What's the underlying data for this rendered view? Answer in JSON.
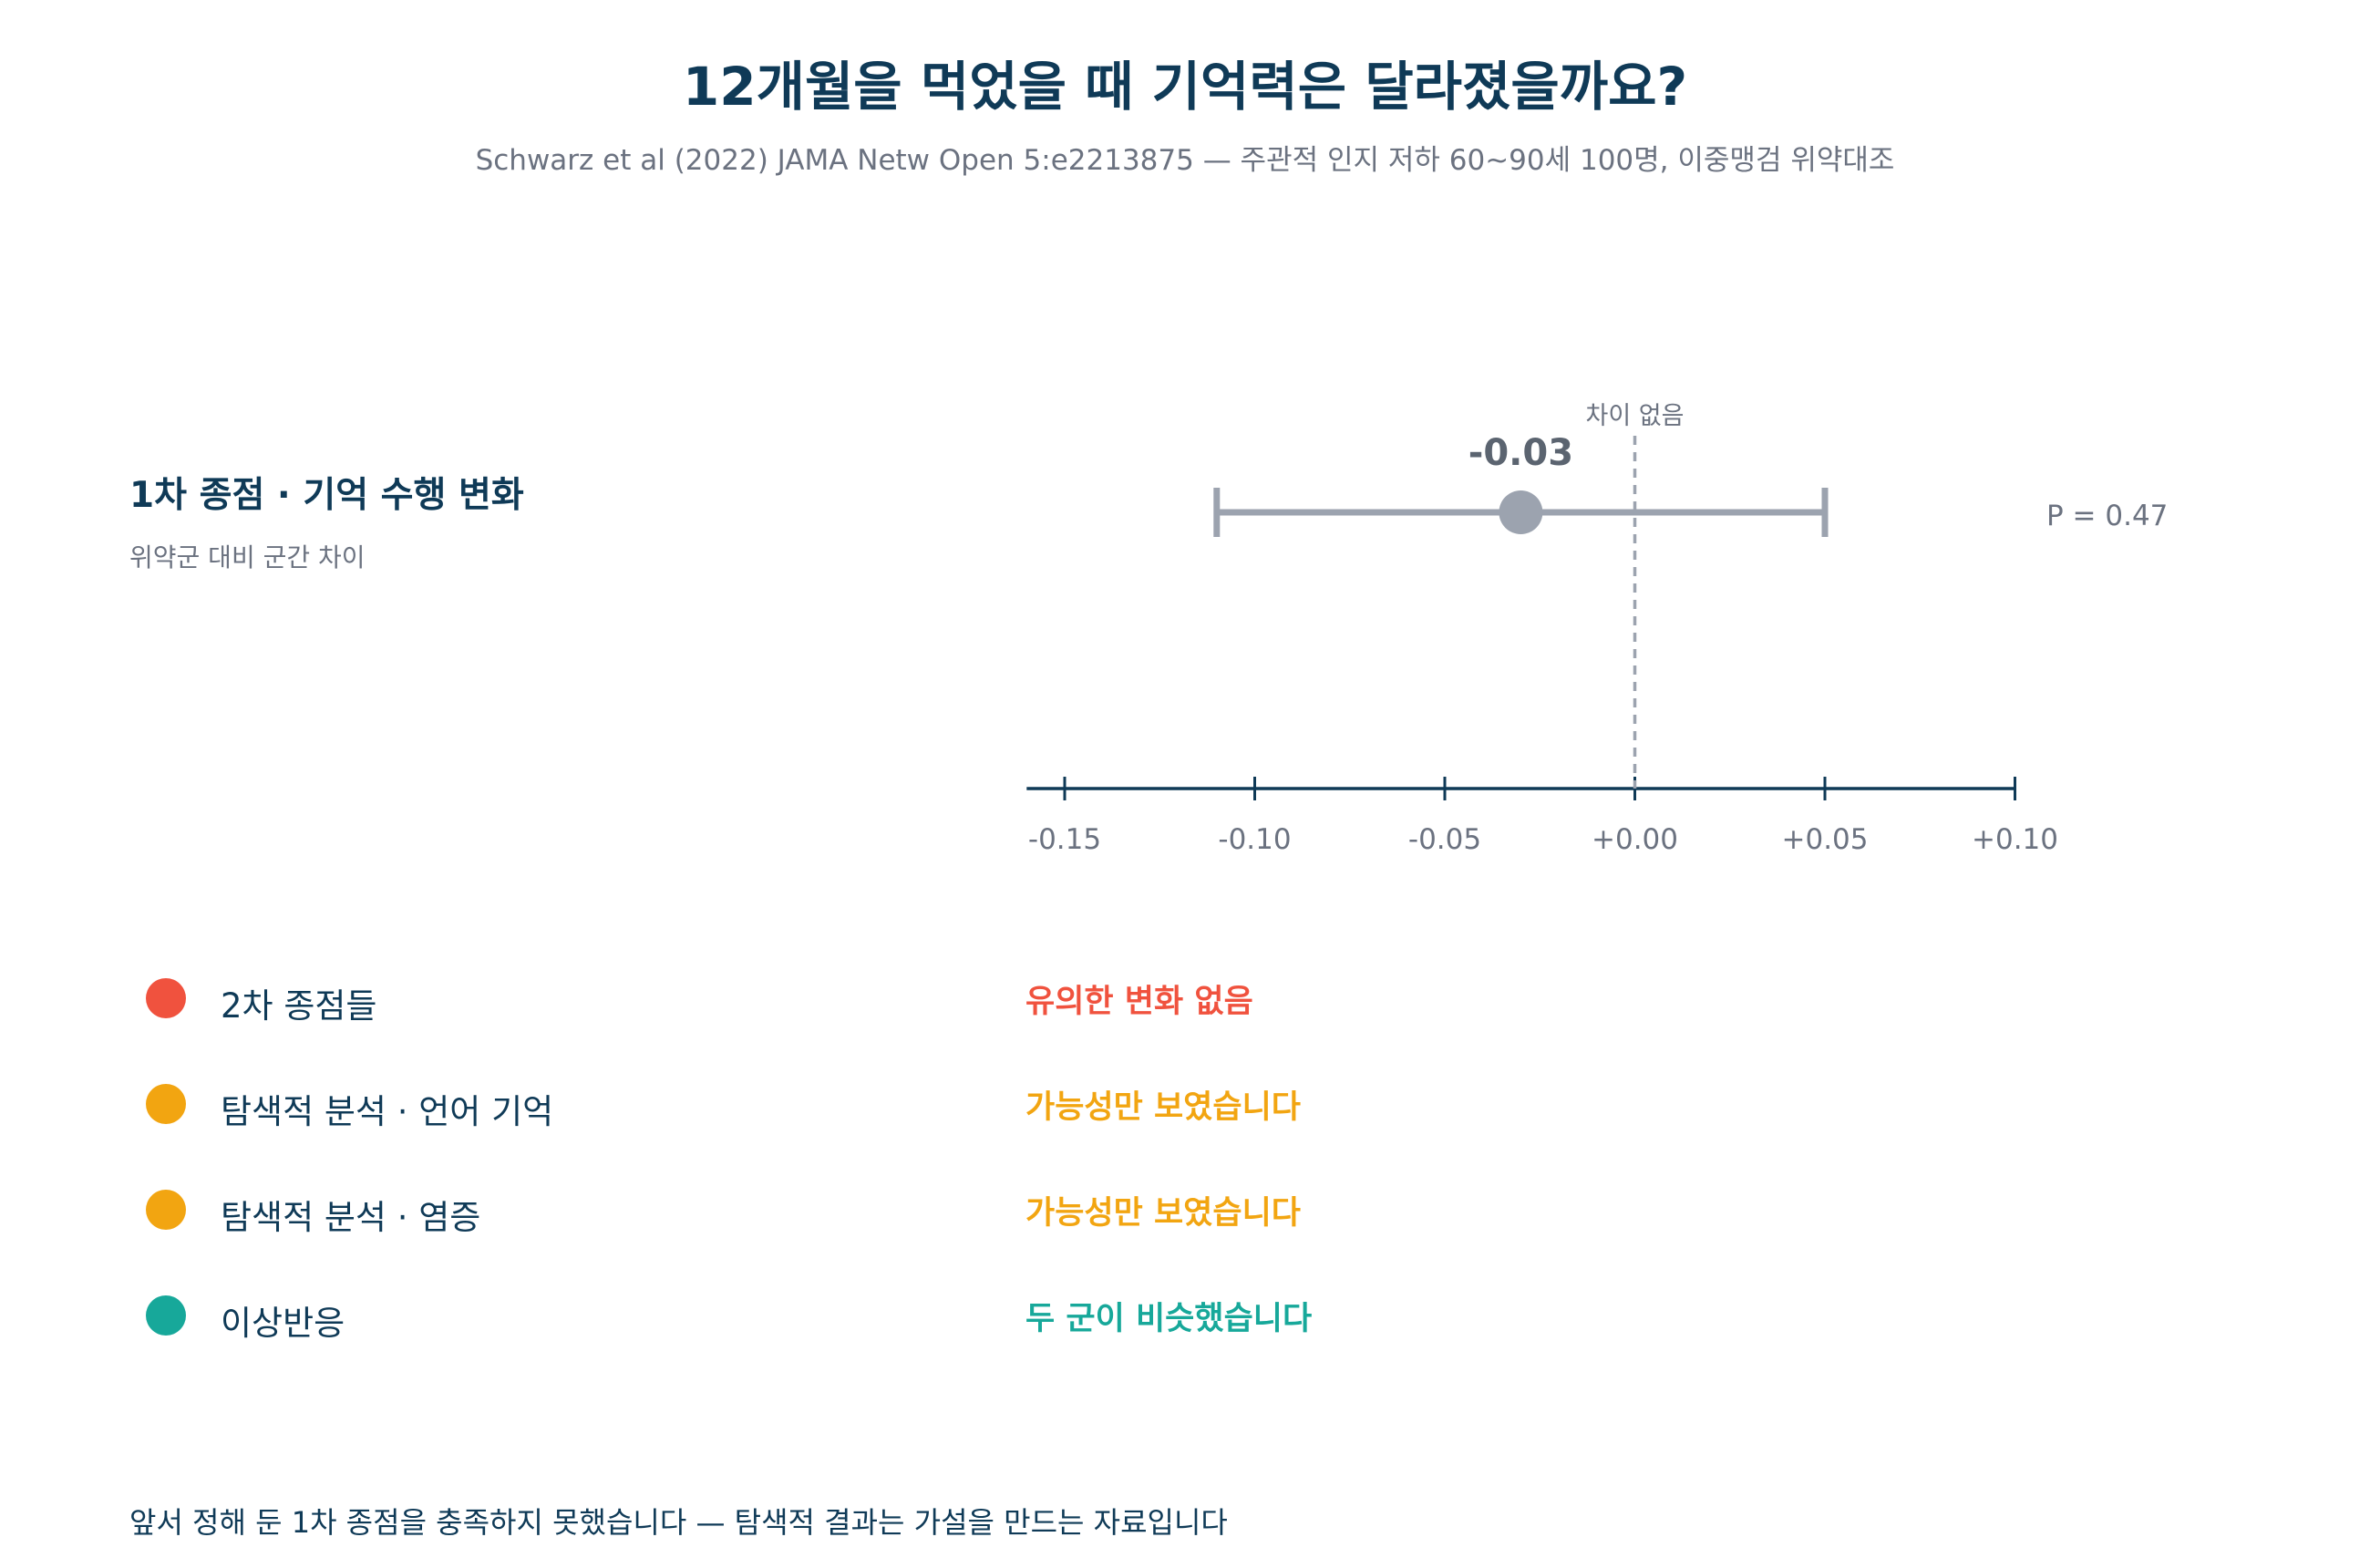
{
  "header": {
    "title": "12개월을 먹었을 때 기억력은 달라졌을까요?",
    "subtitle": "Schwarz et al (2022) JAMA Netw Open 5:e2213875 — 주관적 인지 저하 60~90세 100명, 이중맹검 위약대조"
  },
  "primary": {
    "title": "1차 종점 · 기억 수행 변화",
    "subtitle": "위약군 대비 군간 차이"
  },
  "chart_data": {
    "type": "forest",
    "estimate": -0.03,
    "estimate_label": "-0.03",
    "ci": [
      -0.11,
      0.05
    ],
    "p_label": "P = 0.47",
    "reference_value": 0.0,
    "reference_label": "차이 없음",
    "xlim": [
      -0.16,
      0.1
    ],
    "ticks": [
      -0.15,
      -0.1,
      -0.05,
      0.0,
      0.05,
      0.1
    ],
    "tick_labels": [
      "-0.15",
      "-0.10",
      "-0.05",
      "+0.00",
      "+0.05",
      "+0.10"
    ],
    "colors": {
      "point": "#9ca3af",
      "axis": "#0f3a57",
      "reference": "#9ca3af"
    }
  },
  "outcomes": [
    {
      "label": "2차 종점들",
      "result": "유의한 변화 없음",
      "color": "#f0523e"
    },
    {
      "label": "탐색적 분석 · 언어 기억",
      "result": "가능성만 보였습니다",
      "color": "#f2a511"
    },
    {
      "label": "탐색적 분석 · 염증",
      "result": "가능성만 보였습니다",
      "color": "#f2a511"
    },
    {
      "label": "이상반응",
      "result": "두 군이 비슷했습니다",
      "color": "#17a89a"
    }
  ],
  "footnote": "앞서 정해 둔 1차 종점을 충족하지 못했습니다 — 탐색적 결과는 가설을 만드는 자료입니다"
}
